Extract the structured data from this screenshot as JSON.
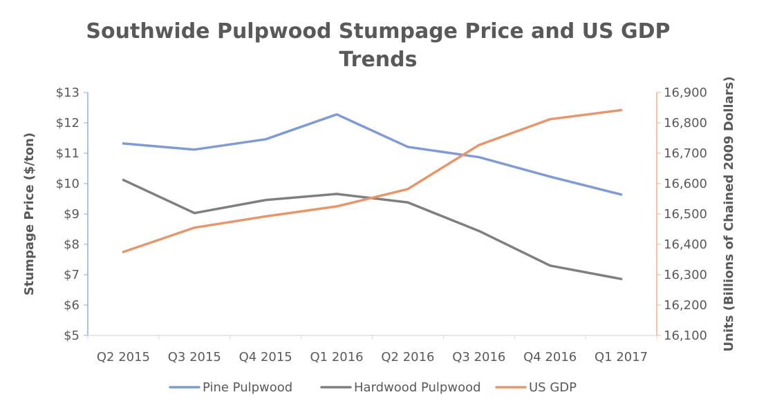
{
  "chart_data": {
    "type": "line",
    "title_line1": "Southwide Pulpwood Stumpage Price and US GDP",
    "title_line2": "Trends",
    "categories": [
      "Q2 2015",
      "Q3 2015",
      "Q4 2015",
      "Q1 2016",
      "Q2 2016",
      "Q3 2016",
      "Q4 2016",
      "Q1 2017"
    ],
    "y_left": {
      "label": "Stumpage Price ($/ton)",
      "min": 5,
      "max": 13,
      "step": 1,
      "ticks": [
        "$5",
        "$6",
        "$7",
        "$8",
        "$9",
        "$10",
        "$11",
        "$12",
        "$13"
      ],
      "color": "#7f7f7f"
    },
    "y_right": {
      "label": "Units (Billions of Chained 2009 Dollars)",
      "min": 16100,
      "max": 16900,
      "step": 100,
      "ticks": [
        "16,100",
        "16,200",
        "16,300",
        "16,400",
        "16,500",
        "16,600",
        "16,700",
        "16,800",
        "16,900"
      ],
      "color": "#ed7d31"
    },
    "series": [
      {
        "name": "Pine Pulpwood",
        "axis": "left",
        "color": "#7f9ad4",
        "values": [
          11.32,
          11.12,
          11.46,
          12.28,
          11.21,
          10.87,
          10.23,
          9.64
        ]
      },
      {
        "name": "Hardwood Pulpwood",
        "axis": "left",
        "color": "#7f7f7f",
        "values": [
          10.12,
          9.03,
          9.46,
          9.66,
          9.38,
          8.44,
          7.3,
          6.86
        ]
      },
      {
        "name": "US GDP",
        "axis": "right",
        "color": "#e8956a",
        "values": [
          16375,
          16455,
          16492,
          16525,
          16582,
          16727,
          16812,
          16842
        ]
      }
    ],
    "legend_position": "bottom",
    "grid": false
  }
}
